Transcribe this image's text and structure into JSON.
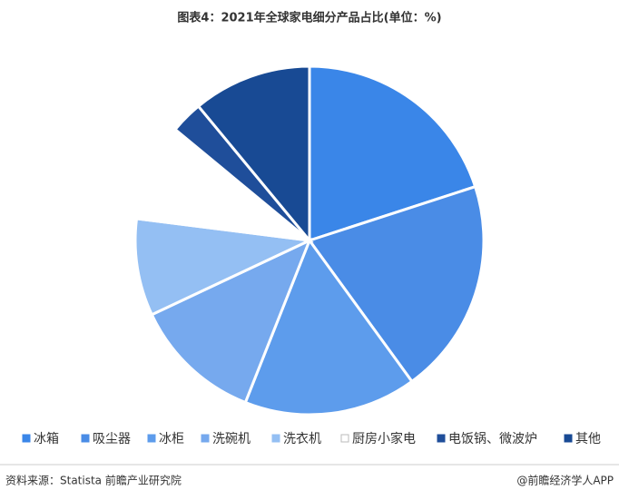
{
  "chart_data": {
    "type": "pie",
    "title": "图表4：2021年全球家电细分产品占比(单位：%)",
    "categories": [
      "冰箱",
      "吸尘器",
      "冰柜",
      "洗碗机",
      "洗衣机",
      "厨房小家电",
      "电饭锅、微波炉",
      "其他"
    ],
    "values": [
      20,
      20,
      16,
      12,
      9,
      9,
      3,
      11
    ],
    "colors": [
      "#3a86e8",
      "#4a8ce6",
      "#5d9cec",
      "#76a9ee",
      "#94bff3",
      "#ffffff",
      "#1f4e9a",
      "#184a94"
    ],
    "legend": "bottom"
  },
  "footer": {
    "source": "资料来源：Statista 前瞻产业研究院",
    "brand": "@前瞻经济学人APP"
  }
}
